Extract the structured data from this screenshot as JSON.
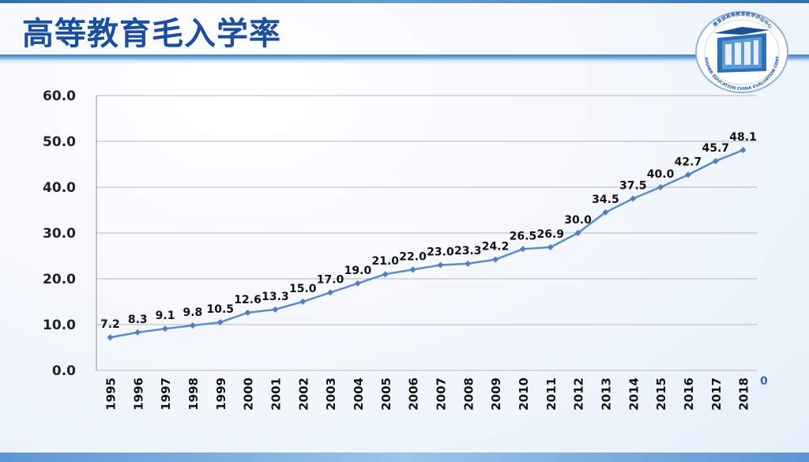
{
  "title": "高等教育毛入学率",
  "logo": {
    "ring_text": "HIGHER EDUCATION CHINA EVALUATION CENTER",
    "top_text": "教育部高等教育教学评估中心",
    "icon": "building-seal-icon"
  },
  "stray_mark": "0",
  "colors": {
    "title": "#1b4f9e",
    "line": "#5b8cc8",
    "marker": "#4f7fbf",
    "grid": "#b8b8b8"
  },
  "chart_data": {
    "type": "line",
    "title": "高等教育毛入学率",
    "xlabel": "",
    "ylabel": "",
    "ylim": [
      0,
      60
    ],
    "yticks": [
      "0.0",
      "10.0",
      "20.0",
      "30.0",
      "40.0",
      "50.0",
      "60.0"
    ],
    "grid": true,
    "legend": "none",
    "categories": [
      "1995",
      "1996",
      "1997",
      "1998",
      "1999",
      "2000",
      "2001",
      "2002",
      "2003",
      "2004",
      "2005",
      "2006",
      "2007",
      "2008",
      "2009",
      "2010",
      "2011",
      "2012",
      "2013",
      "2014",
      "2015",
      "2016",
      "2017",
      "2018"
    ],
    "values": [
      7.2,
      8.3,
      9.1,
      9.8,
      10.5,
      12.6,
      13.3,
      15.0,
      17.0,
      19.0,
      21.0,
      22.0,
      23.0,
      23.3,
      24.2,
      26.5,
      26.9,
      30.0,
      34.5,
      37.5,
      40.0,
      42.7,
      45.7,
      48.1
    ],
    "data_labels": [
      "7.2",
      "8.3",
      "9.1",
      "9.8",
      "10.5",
      "12.6",
      "13.3",
      "15.0",
      "17.0",
      "19.0",
      "21.0",
      "22.0",
      "23.0",
      "23.3",
      "24.2",
      "26.5",
      "26.9",
      "30.0",
      "34.5",
      "37.5",
      "40.0",
      "42.7",
      "45.7",
      "48.1"
    ]
  }
}
